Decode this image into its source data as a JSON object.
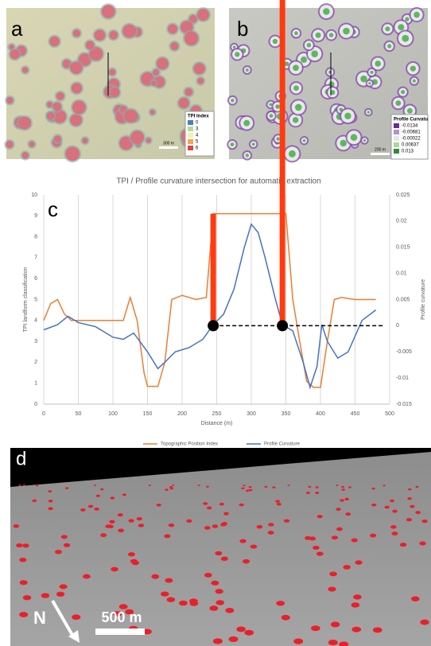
{
  "panels": {
    "a": {
      "label": "a",
      "scale_bar": "300 m",
      "legend": {
        "title": "TPI Index",
        "items": [
          {
            "label": "0",
            "color": "#4a7fc1"
          },
          {
            "label": "3",
            "color": "#b5d99c"
          },
          {
            "label": "4",
            "color": "#f4f0b0"
          },
          {
            "label": "5",
            "color": "#f3a450"
          },
          {
            "label": "6",
            "color": "#e0443a"
          }
        ]
      }
    },
    "b": {
      "label": "b",
      "scale_bar": "200 m",
      "legend": {
        "title": "Profile Curvatu",
        "items": [
          {
            "label": "-0.0134",
            "color": "#6a2c91"
          },
          {
            "label": "-0.00681",
            "color": "#b58fcf"
          },
          {
            "label": "-0.00022",
            "color": "#e6e6e6"
          },
          {
            "label": "0.00637",
            "color": "#a8d89a"
          },
          {
            "label": "0.013",
            "color": "#2e8b3a"
          }
        ]
      }
    },
    "d": {
      "label": "d",
      "north": "N",
      "scale_bar": "500 m"
    }
  },
  "chart_data": {
    "type": "line",
    "panel_label": "c",
    "title": "TPI / Profile curvature intersection for automatic extraction",
    "x_label": "Distance (m)",
    "y_label": "TPI landform classification",
    "y2_label": "Profile curvature",
    "xlim": [
      0,
      500
    ],
    "xticks": [
      0,
      50,
      100,
      150,
      200,
      250,
      300,
      350,
      400,
      450,
      500
    ],
    "ylim": [
      0,
      10
    ],
    "yticks": [
      0,
      1,
      2,
      3,
      4,
      5,
      6,
      7,
      8,
      9,
      10
    ],
    "y2lim": [
      -0.015,
      0.025
    ],
    "y2ticks": [
      -0.015,
      -0.01,
      -0.005,
      0,
      0.005,
      0.01,
      0.015,
      0.02,
      0.025
    ],
    "grid": "x",
    "series": [
      {
        "name": "Topographic Position Index",
        "color": "#ed7d31",
        "x": [
          0,
          10,
          20,
          30,
          40,
          60,
          80,
          100,
          115,
          125,
          135,
          145,
          150,
          165,
          175,
          185,
          200,
          220,
          235,
          245,
          260,
          300,
          340,
          350,
          360,
          370,
          380,
          390,
          400,
          410,
          420,
          430,
          450,
          480
        ],
        "values": [
          4,
          4.8,
          5,
          4.3,
          4,
          4,
          4,
          4,
          4,
          5.1,
          4,
          1.5,
          0.85,
          0.85,
          2,
          5,
          5.2,
          5,
          5.1,
          9.1,
          9.1,
          9.1,
          9.1,
          9.1,
          5,
          3,
          1.1,
          0.8,
          0.8,
          3,
          5,
          5.1,
          5,
          5
        ]
      },
      {
        "name": "Profile Curvature",
        "color": "#4472c4",
        "axis": "y2",
        "x": [
          0,
          20,
          35,
          50,
          75,
          100,
          115,
          130,
          150,
          165,
          175,
          190,
          210,
          230,
          245,
          260,
          275,
          290,
          300,
          310,
          320,
          335,
          345,
          360,
          375,
          385,
          395,
          402,
          410,
          425,
          440,
          460,
          480
        ],
        "values": [
          -0.0008,
          0.0002,
          0.0018,
          0.0006,
          -0.0002,
          -0.0022,
          -0.0026,
          -0.0014,
          -0.005,
          -0.0082,
          -0.007,
          -0.005,
          -0.0042,
          -0.0026,
          0.0002,
          0.0022,
          0.007,
          0.015,
          0.0194,
          0.0178,
          0.013,
          0.005,
          0.0002,
          -0.001,
          -0.007,
          -0.0118,
          -0.0078,
          0.0002,
          -0.003,
          -0.0062,
          -0.005,
          0.001,
          0.003
        ]
      }
    ],
    "highlights": {
      "x": [
        245,
        345
      ],
      "color": "#ff3b0f"
    },
    "reference_line": {
      "y2": 0,
      "x": [
        245,
        490
      ]
    }
  }
}
